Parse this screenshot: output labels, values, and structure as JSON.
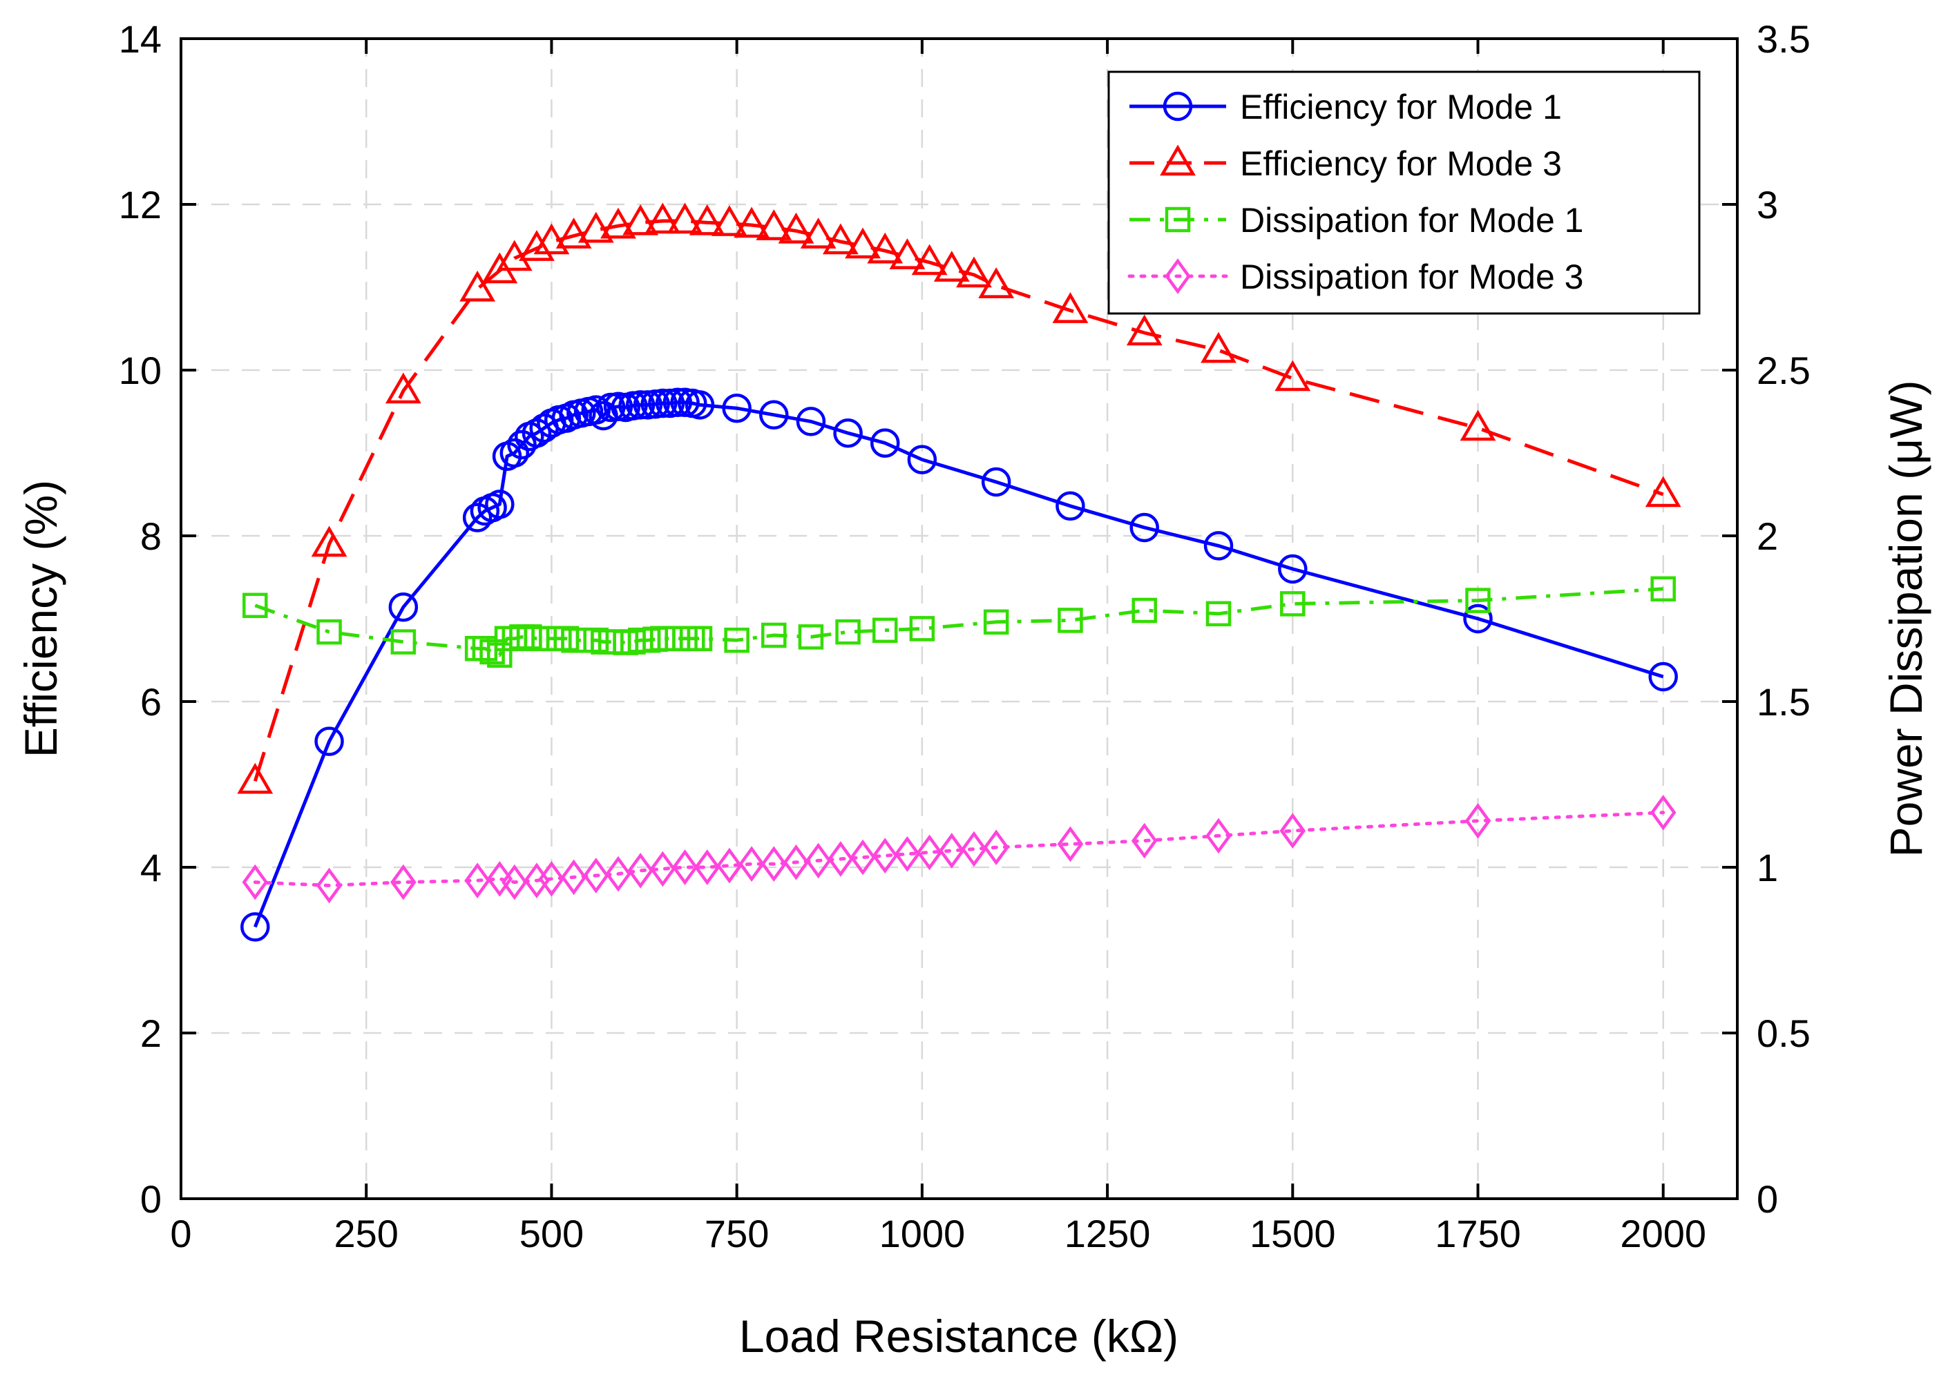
{
  "chart_data": {
    "type": "line",
    "title": "",
    "xlabel": "Load Resistance (kΩ)",
    "ylabel": "Efficiency (%)",
    "y2label": "Power Dissipation (μW)",
    "xlim": [
      0,
      2100
    ],
    "ylim": [
      0,
      14
    ],
    "y2lim": [
      0,
      3.5
    ],
    "xticks": [
      0,
      250,
      500,
      750,
      1000,
      1250,
      1500,
      1750,
      2000
    ],
    "yticks": [
      0,
      2,
      4,
      6,
      8,
      10,
      12,
      14
    ],
    "y2ticks": [
      0,
      0.5,
      1,
      1.5,
      2,
      2.5,
      3,
      3.5
    ],
    "xtick_labels": [
      "0",
      "250",
      "500",
      "750",
      "1000",
      "1250",
      "1500",
      "1750",
      "2000"
    ],
    "ytick_labels": [
      "0",
      "2",
      "4",
      "6",
      "8",
      "10",
      "12",
      "14"
    ],
    "y2tick_labels": [
      "0",
      "0.5",
      "1",
      "1.5",
      "2",
      "2.5",
      "3",
      "3.5"
    ],
    "grid": true,
    "legend_position": "top-right",
    "series": [
      {
        "name": "Efficiency for Mode 1",
        "axis": "left",
        "color": "#0000ff",
        "line_style": "solid",
        "marker": "circle",
        "x": [
          100,
          200,
          300,
          400,
          410,
          420,
          430,
          440,
          450,
          460,
          470,
          480,
          490,
          500,
          510,
          520,
          530,
          540,
          550,
          560,
          570,
          580,
          590,
          600,
          610,
          620,
          630,
          640,
          650,
          660,
          670,
          680,
          690,
          700,
          750,
          800,
          850,
          900,
          950,
          1000,
          1100,
          1200,
          1300,
          1400,
          1500,
          1750,
          2000
        ],
        "y": [
          3.28,
          5.52,
          7.14,
          8.22,
          8.3,
          8.34,
          8.38,
          8.96,
          9.0,
          9.1,
          9.2,
          9.24,
          9.3,
          9.36,
          9.4,
          9.42,
          9.46,
          9.48,
          9.5,
          9.52,
          9.45,
          9.55,
          9.56,
          9.55,
          9.57,
          9.58,
          9.58,
          9.59,
          9.6,
          9.6,
          9.61,
          9.61,
          9.6,
          9.58,
          9.54,
          9.46,
          9.38,
          9.24,
          9.12,
          8.92,
          8.65,
          8.36,
          8.1,
          7.88,
          7.6,
          7.0,
          6.3
        ]
      },
      {
        "name": "Efficiency for Mode 3",
        "axis": "left",
        "color": "#ff0000",
        "line_style": "dashed",
        "marker": "triangle",
        "x": [
          100,
          200,
          300,
          400,
          430,
          450,
          480,
          500,
          530,
          560,
          590,
          620,
          650,
          680,
          710,
          740,
          770,
          800,
          830,
          860,
          890,
          920,
          950,
          980,
          1010,
          1040,
          1070,
          1100,
          1200,
          1300,
          1400,
          1500,
          1750,
          2000
        ],
        "y": [
          5.04,
          7.9,
          9.75,
          10.98,
          11.2,
          11.35,
          11.47,
          11.55,
          11.62,
          11.69,
          11.74,
          11.78,
          11.8,
          11.8,
          11.78,
          11.77,
          11.75,
          11.72,
          11.68,
          11.62,
          11.55,
          11.5,
          11.44,
          11.37,
          11.3,
          11.22,
          11.15,
          11.02,
          10.72,
          10.45,
          10.24,
          9.9,
          9.3,
          8.5
        ]
      },
      {
        "name": "Dissipation for Mode 1",
        "axis": "right",
        "color": "#33dd00",
        "line_style": "dashdot",
        "marker": "square",
        "x": [
          100,
          200,
          300,
          400,
          410,
          420,
          430,
          440,
          450,
          460,
          470,
          480,
          490,
          500,
          510,
          520,
          530,
          540,
          550,
          560,
          570,
          580,
          590,
          600,
          610,
          620,
          630,
          640,
          650,
          660,
          670,
          680,
          690,
          700,
          750,
          800,
          850,
          900,
          950,
          1000,
          1100,
          1200,
          1300,
          1400,
          1500,
          1750,
          2000
        ],
        "y": [
          1.79,
          1.71,
          1.68,
          1.66,
          1.66,
          1.65,
          1.64,
          1.69,
          1.69,
          1.695,
          1.695,
          1.69,
          1.69,
          1.69,
          1.69,
          1.69,
          1.685,
          1.685,
          1.685,
          1.685,
          1.68,
          1.68,
          1.68,
          1.678,
          1.68,
          1.685,
          1.685,
          1.688,
          1.69,
          1.69,
          1.69,
          1.69,
          1.69,
          1.69,
          1.685,
          1.7,
          1.695,
          1.71,
          1.715,
          1.72,
          1.74,
          1.745,
          1.775,
          1.765,
          1.795,
          1.805,
          1.84
        ]
      },
      {
        "name": "Dissipation for Mode 3",
        "axis": "right",
        "color": "#ff44dd",
        "line_style": "dotted",
        "marker": "diamond",
        "x": [
          100,
          200,
          300,
          400,
          430,
          450,
          480,
          500,
          530,
          560,
          590,
          620,
          650,
          680,
          710,
          740,
          770,
          800,
          830,
          860,
          890,
          920,
          950,
          980,
          1010,
          1040,
          1070,
          1100,
          1200,
          1300,
          1400,
          1500,
          1750,
          2000
        ],
        "y": [
          0.955,
          0.945,
          0.955,
          0.96,
          0.965,
          0.955,
          0.96,
          0.965,
          0.97,
          0.975,
          0.98,
          0.99,
          0.995,
          1.0,
          1.0,
          1.005,
          1.01,
          1.01,
          1.015,
          1.02,
          1.025,
          1.03,
          1.035,
          1.04,
          1.045,
          1.05,
          1.055,
          1.06,
          1.07,
          1.08,
          1.095,
          1.11,
          1.14,
          1.165
        ]
      }
    ]
  }
}
